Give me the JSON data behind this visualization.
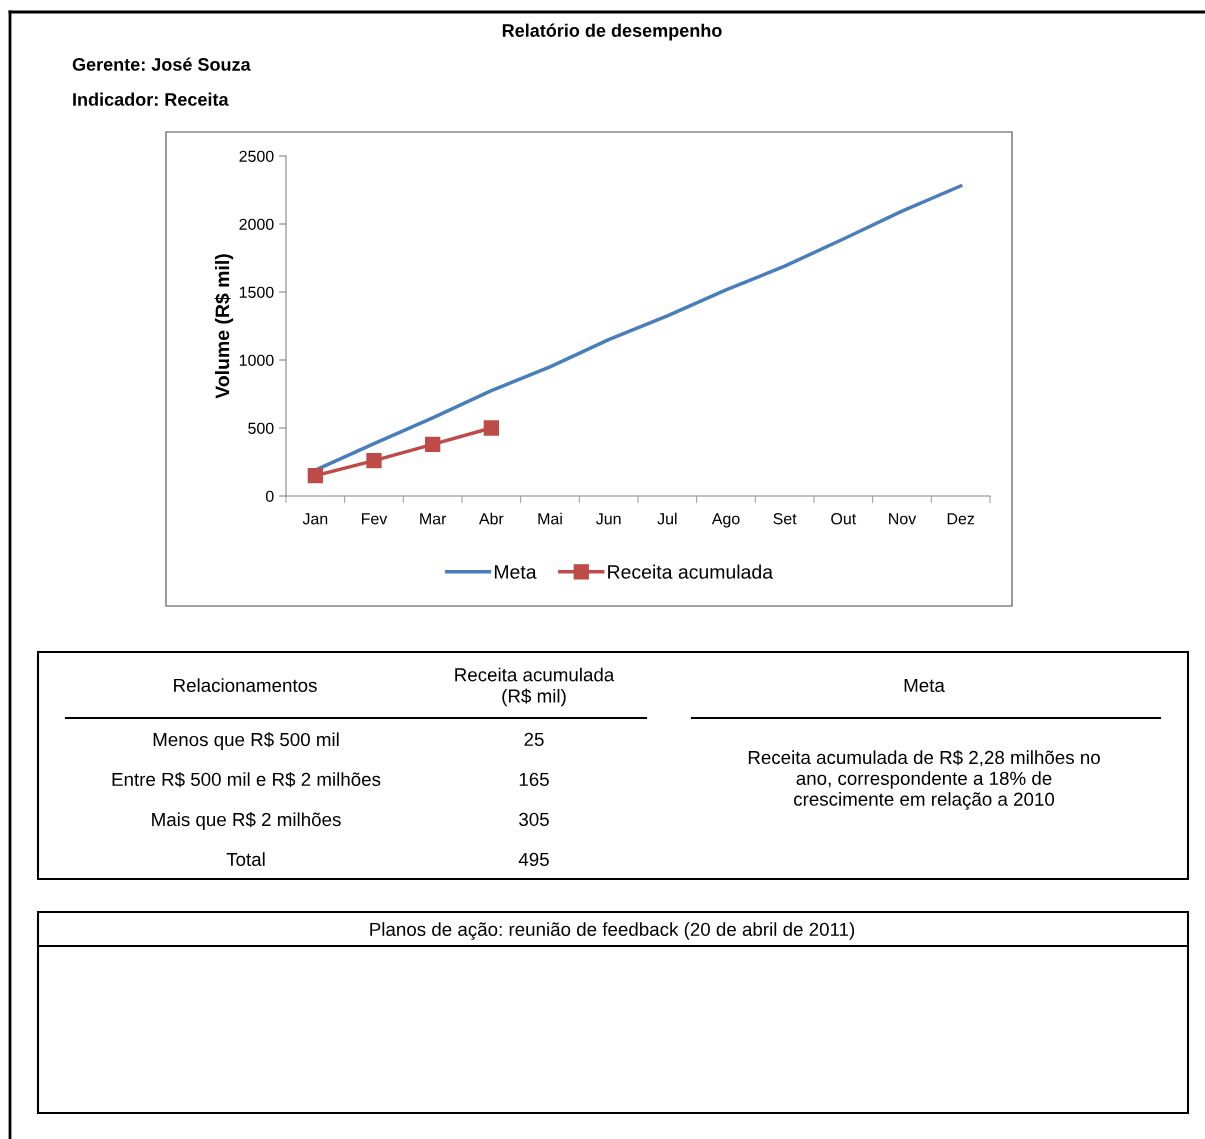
{
  "chart_data": [
    {
      "type": "line",
      "title": "Relatório de desempenho",
      "annotations": [
        "Gerente: José Souza",
        "Indicador: Receita"
      ],
      "ylabel": "Volume (R$ mil)",
      "categories": [
        "Jan",
        "Fev",
        "Mar",
        "Abr",
        "Mai",
        "Jun",
        "Jul",
        "Ago",
        "Set",
        "Out",
        "Nov",
        "Dez"
      ],
      "series": [
        {
          "name": "Meta",
          "color": "#4a7ebb",
          "marker": "none",
          "values": [
            190,
            385,
            575,
            775,
            950,
            1150,
            1325,
            1515,
            1690,
            1890,
            2095,
            2280
          ]
        },
        {
          "name": "Receita acumulada",
          "color": "#be4b48",
          "marker": "square",
          "values": [
            150,
            260,
            380,
            500,
            null,
            null,
            null,
            null,
            null,
            null,
            null,
            null
          ]
        }
      ],
      "ylim": [
        0,
        2500
      ],
      "yticks": [
        0,
        500,
        1000,
        1500,
        2000,
        2500
      ],
      "grid": false,
      "legend": "bottom"
    },
    {
      "type": "other",
      "annotations": [
        "Relacionamentos",
        "Receita acumulada\n(R$ mil)",
        "Meta",
        "Menos que R$ 500 mil",
        "25",
        "Entre R$ 500 mil e R$ 2 milhões",
        "165",
        "Mais que R$ 2 milhões",
        "305",
        "Total",
        "495",
        "Receita acumulada de R$ 2,28 milhões no\nano, correspondente a 18% de\ncrescimente em relação a 2010",
        "Planos de ação: reunião de feedback (20 de abril de 2011)"
      ]
    }
  ]
}
